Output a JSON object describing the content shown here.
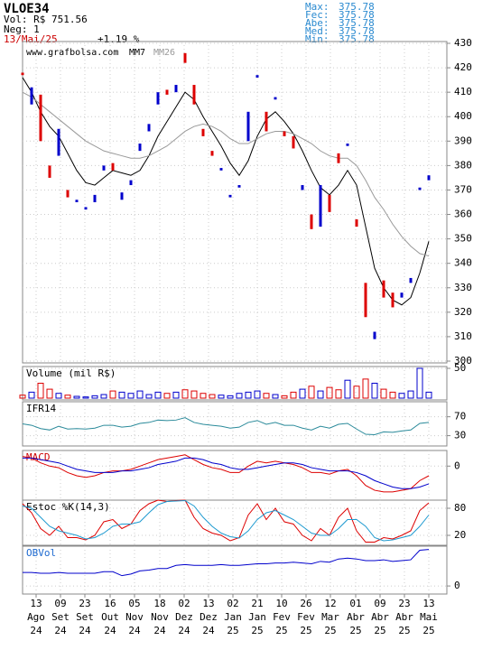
{
  "header": {
    "ticker": "VLOE34",
    "volume": "Vol: R$ 751.56",
    "trades": "Neg: 1",
    "date": "13/Mai/25",
    "change": "+1.19 %",
    "stats": [
      {
        "label": "Max:",
        "value": "375.78"
      },
      {
        "label": "Fec:",
        "value": "375.78"
      },
      {
        "label": "Abe:",
        "value": "375.78"
      },
      {
        "label": "Med:",
        "value": "375.78"
      },
      {
        "label": "Min:",
        "value": "375.78"
      }
    ]
  },
  "chart_data": [
    {
      "type": "candlestick",
      "annotation": "www.grafbolsa.com",
      "up_color": "#0000cc",
      "down_color": "#dd0000",
      "x": [
        0,
        1,
        2,
        3,
        4,
        5,
        6,
        7,
        8,
        9,
        10,
        11,
        12,
        13,
        14,
        15,
        16,
        17,
        18,
        19,
        20,
        21,
        22,
        23,
        24,
        25,
        26,
        27,
        28,
        29,
        30,
        31,
        32,
        33,
        34,
        35,
        36,
        37,
        38,
        39,
        40,
        41,
        42,
        43,
        44,
        45
      ],
      "open": [
        418,
        405,
        409,
        380,
        384,
        370,
        365,
        362,
        365,
        378,
        381,
        366,
        372,
        386,
        394,
        405,
        411,
        410,
        426,
        413,
        395,
        386,
        378,
        367,
        371,
        390,
        416,
        402,
        407,
        394,
        392,
        370,
        360,
        355,
        368,
        385,
        388,
        358,
        332,
        309,
        333,
        328,
        326,
        332,
        370,
        374
      ],
      "close": [
        417,
        412,
        390,
        375,
        395,
        367,
        366,
        363,
        368,
        380,
        378,
        369,
        374,
        389,
        397,
        410,
        409,
        413,
        422,
        405,
        392,
        384,
        379,
        368,
        372,
        402,
        417,
        394,
        408,
        392,
        387,
        372,
        354,
        372,
        361,
        381,
        389,
        355,
        318,
        312,
        326,
        322,
        328,
        334,
        371,
        376
      ],
      "lines": [
        {
          "name": "MM7",
          "color": "#000000",
          "values": [
            416,
            410,
            402,
            396,
            392,
            385,
            378,
            373,
            372,
            375,
            378,
            377,
            376,
            378,
            384,
            392,
            398,
            404,
            410,
            407,
            400,
            394,
            388,
            381,
            376,
            382,
            392,
            399,
            402,
            398,
            393,
            386,
            378,
            371,
            368,
            372,
            378,
            372,
            355,
            338,
            330,
            325,
            323,
            326,
            336,
            349
          ]
        },
        {
          "name": "MM26",
          "color": "#999999",
          "values": [
            410,
            408,
            405,
            402,
            399,
            396,
            393,
            390,
            388,
            386,
            385,
            384,
            383,
            383,
            384,
            386,
            388,
            391,
            394,
            396,
            397,
            396,
            394,
            391,
            389,
            389,
            391,
            393,
            394,
            394,
            393,
            391,
            389,
            386,
            384,
            383,
            383,
            380,
            374,
            367,
            362,
            356,
            351,
            347,
            344,
            343
          ]
        }
      ],
      "xlim": [
        0,
        47
      ],
      "ylim": [
        300,
        430
      ],
      "yticks": [
        300,
        310,
        320,
        330,
        340,
        350,
        360,
        370,
        380,
        390,
        400,
        410,
        420,
        430
      ],
      "xticks": [
        {
          "value": 1.5,
          "label": [
            "13",
            "Ago",
            "24"
          ]
        },
        {
          "value": 4.2,
          "label": [
            "09",
            "Set",
            "24"
          ]
        },
        {
          "value": 6.9,
          "label": [
            "23",
            "Set",
            "24"
          ]
        },
        {
          "value": 9.7,
          "label": [
            "16",
            "Out",
            "24"
          ]
        },
        {
          "value": 12.4,
          "label": [
            "05",
            "Nov",
            "24"
          ]
        },
        {
          "value": 15.2,
          "label": [
            "18",
            "Nov",
            "24"
          ]
        },
        {
          "value": 17.9,
          "label": [
            "02",
            "Dez",
            "24"
          ]
        },
        {
          "value": 20.6,
          "label": [
            "13",
            "Dez",
            "24"
          ]
        },
        {
          "value": 23.3,
          "label": [
            "02",
            "Jan",
            "25"
          ]
        },
        {
          "value": 26,
          "label": [
            "21",
            "Jan",
            "25"
          ]
        },
        {
          "value": 28.7,
          "label": [
            "10",
            "Fev",
            "25"
          ]
        },
        {
          "value": 31.4,
          "label": [
            "26",
            "Fev",
            "25"
          ]
        },
        {
          "value": 34.1,
          "label": [
            "12",
            "Mar",
            "25"
          ]
        },
        {
          "value": 36.9,
          "label": [
            "01",
            "Abr",
            "25"
          ]
        },
        {
          "value": 39.6,
          "label": [
            "09",
            "Abr",
            "25"
          ]
        },
        {
          "value": 42.3,
          "label": [
            "23",
            "Abr",
            "25"
          ]
        },
        {
          "value": 45,
          "label": [
            "13",
            "Mai",
            "25"
          ]
        }
      ]
    },
    {
      "type": "bar",
      "title": "Volume (mil R$)",
      "ylim": [
        0,
        50
      ],
      "yticks": [
        50
      ],
      "values": [
        5,
        10,
        25,
        15,
        8,
        5,
        3,
        2,
        4,
        6,
        12,
        10,
        8,
        12,
        6,
        10,
        8,
        10,
        14,
        12,
        8,
        6,
        5,
        4,
        8,
        10,
        12,
        8,
        6,
        4,
        10,
        15,
        20,
        12,
        18,
        14,
        30,
        20,
        32,
        25,
        15,
        10,
        8,
        12,
        50,
        10
      ]
    },
    {
      "type": "line",
      "title": "IFR14",
      "ylim": [
        12,
        98
      ],
      "yticks": [
        30,
        70
      ],
      "series": [
        {
          "color": "#2a8a9a",
          "values": [
            55,
            52,
            45,
            42,
            50,
            44,
            45,
            44,
            46,
            52,
            52,
            48,
            50,
            56,
            58,
            63,
            62,
            63,
            68,
            58,
            54,
            52,
            50,
            46,
            48,
            58,
            62,
            54,
            58,
            52,
            52,
            46,
            42,
            50,
            46,
            54,
            56,
            44,
            33,
            32,
            38,
            37,
            40,
            42,
            56,
            58
          ]
        }
      ]
    },
    {
      "type": "line",
      "title": "MACD",
      "title_color": "#cc0000",
      "ylim": [
        -20,
        8
      ],
      "yticks": [
        0
      ],
      "series": [
        {
          "color": "#dd0000",
          "values": [
            6,
            5,
            2,
            0,
            -1,
            -4,
            -6,
            -7,
            -6,
            -4,
            -3,
            -3,
            -2,
            0,
            2,
            4,
            5,
            6,
            7,
            4,
            1,
            -1,
            -2,
            -4,
            -4,
            0,
            3,
            2,
            3,
            2,
            1,
            -1,
            -4,
            -4,
            -5,
            -3,
            -2,
            -6,
            -12,
            -15,
            -16,
            -16,
            -15,
            -14,
            -9,
            -6
          ]
        },
        {
          "color": "#0000cc",
          "values": [
            5,
            5,
            4,
            3,
            2,
            0,
            -2,
            -3,
            -4,
            -4,
            -4,
            -3,
            -3,
            -2,
            -1,
            1,
            2,
            3,
            5,
            5,
            4,
            2,
            1,
            -1,
            -2,
            -2,
            -1,
            0,
            1,
            2,
            2,
            1,
            -1,
            -2,
            -3,
            -3,
            -3,
            -4,
            -6,
            -9,
            -11,
            -13,
            -14,
            -14,
            -13,
            -11
          ]
        }
      ]
    },
    {
      "type": "line",
      "title": "Estoc %K(14,3)",
      "ylim": [
        0,
        100
      ],
      "yticks": [
        20,
        80
      ],
      "series": [
        {
          "color": "#dd0000",
          "values": [
            90,
            70,
            35,
            20,
            40,
            15,
            15,
            10,
            20,
            50,
            55,
            35,
            45,
            75,
            90,
            98,
            95,
            97,
            98,
            60,
            35,
            25,
            20,
            8,
            15,
            65,
            90,
            55,
            80,
            50,
            45,
            20,
            8,
            35,
            20,
            60,
            80,
            30,
            5,
            5,
            15,
            12,
            20,
            30,
            75,
            92
          ]
        },
        {
          "color": "#1e9ad0",
          "values": [
            85,
            80,
            60,
            40,
            30,
            25,
            20,
            12,
            15,
            25,
            40,
            45,
            45,
            50,
            70,
            88,
            95,
            96,
            97,
            85,
            60,
            40,
            25,
            17,
            14,
            30,
            55,
            70,
            75,
            65,
            55,
            40,
            25,
            20,
            20,
            35,
            55,
            55,
            40,
            15,
            8,
            10,
            15,
            20,
            40,
            65
          ]
        }
      ]
    },
    {
      "type": "line",
      "title": "OBVol",
      "title_color": "#1e6ad0",
      "ylim": [
        -0.9,
        4.9
      ],
      "yticks": [
        0
      ],
      "series": [
        {
          "color": "#0000cc",
          "values": [
            1.7,
            1.7,
            1.6,
            1.6,
            1.7,
            1.6,
            1.6,
            1.6,
            1.6,
            1.8,
            1.8,
            1.3,
            1.5,
            1.9,
            2.0,
            2.2,
            2.2,
            2.6,
            2.7,
            2.6,
            2.6,
            2.6,
            2.7,
            2.6,
            2.6,
            2.7,
            2.8,
            2.8,
            2.9,
            2.9,
            3.0,
            2.9,
            2.8,
            3.1,
            3.0,
            3.4,
            3.5,
            3.4,
            3.2,
            3.2,
            3.3,
            3.1,
            3.2,
            3.3,
            4.5,
            4.6
          ]
        }
      ]
    }
  ]
}
